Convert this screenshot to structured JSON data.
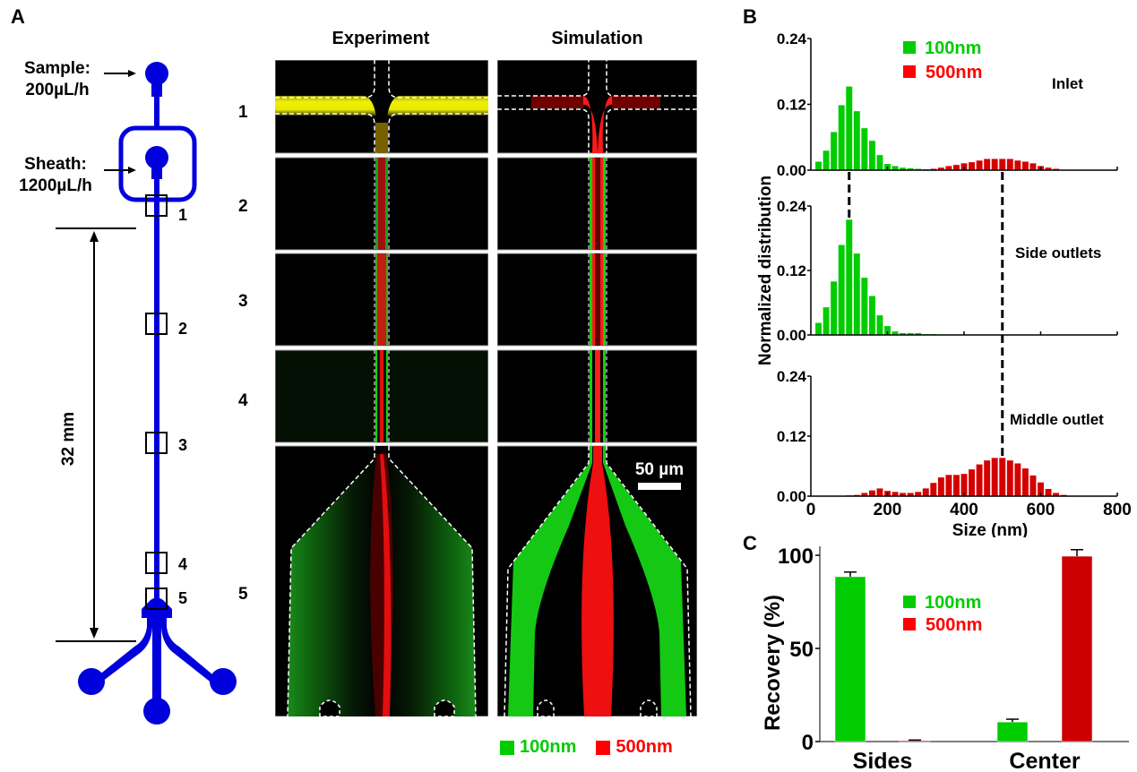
{
  "figure": {
    "panel_labels": {
      "a": "A",
      "b": "B",
      "c": "C"
    }
  },
  "panel_a": {
    "sample_label": "Sample:",
    "sample_rate": "200µL/h",
    "sheath_label": "Sheath:",
    "sheath_rate": "1200µL/h",
    "length_label": "32 mm",
    "window_labels": [
      "1",
      "2",
      "3",
      "4",
      "5"
    ],
    "column_titles": {
      "experiment": "Experiment",
      "simulation": "Simulation"
    },
    "row_labels": [
      "1",
      "2",
      "3",
      "4",
      "5"
    ],
    "scale_bar": "50 µm",
    "legend": [
      {
        "label": "100nm",
        "color": "#00cc00"
      },
      {
        "label": "500nm",
        "color": "#ff0000"
      }
    ],
    "device_color": "#0000dd"
  },
  "chart_data": [
    {
      "type": "bar",
      "title": "Inlet",
      "panel": "B",
      "xlabel": "Size (nm)",
      "ylabel": "Normalized distribution",
      "xlim": [
        0,
        800
      ],
      "ylim": [
        0,
        0.24
      ],
      "yticks": [
        "0.00",
        "0.12",
        "0.24"
      ],
      "xticks": [
        "0",
        "200",
        "400",
        "600",
        "800"
      ],
      "bin_width_nm": 20,
      "legend": [
        {
          "label": "100nm",
          "color": "#00cc00"
        },
        {
          "label": "500nm",
          "color": "#ff0000"
        }
      ],
      "legend_position": "top-center",
      "reference_lines_nm": [
        100,
        500
      ],
      "series": [
        {
          "name": "100nm",
          "color": "#00cc00",
          "x": [
            20,
            40,
            60,
            80,
            100,
            120,
            140,
            160,
            180,
            200,
            220,
            240,
            260,
            280,
            300
          ],
          "values": [
            0.016,
            0.036,
            0.07,
            0.119,
            0.153,
            0.108,
            0.077,
            0.054,
            0.028,
            0.012,
            0.008,
            0.005,
            0.004,
            0.003,
            0.002
          ]
        },
        {
          "name": "500nm",
          "color": "#d40000",
          "x": [
            300,
            320,
            340,
            360,
            380,
            400,
            420,
            440,
            460,
            480,
            500,
            520,
            540,
            560,
            580,
            600,
            620,
            640,
            660
          ],
          "values": [
            0.002,
            0.003,
            0.005,
            0.008,
            0.01,
            0.013,
            0.015,
            0.018,
            0.021,
            0.021,
            0.021,
            0.021,
            0.018,
            0.016,
            0.013,
            0.008,
            0.005,
            0.003,
            0.001
          ]
        }
      ]
    },
    {
      "type": "bar",
      "title": "Side outlets",
      "panel": "B",
      "xlim": [
        0,
        800
      ],
      "ylim": [
        0,
        0.24
      ],
      "yticks": [
        "0.00",
        "0.12",
        "0.24"
      ],
      "bin_width_nm": 20,
      "series": [
        {
          "name": "100nm",
          "color": "#00cc00",
          "x": [
            20,
            40,
            60,
            80,
            100,
            120,
            140,
            160,
            180,
            200,
            220,
            240,
            260,
            280,
            300,
            320,
            340,
            360
          ],
          "values": [
            0.023,
            0.052,
            0.1,
            0.168,
            0.215,
            0.152,
            0.107,
            0.073,
            0.037,
            0.017,
            0.007,
            0.004,
            0.004,
            0.004,
            0.002,
            0.002,
            0.001,
            0.001
          ]
        }
      ]
    },
    {
      "type": "bar",
      "title": "Middle outlet",
      "panel": "B",
      "xlabel": "Size (nm)",
      "xlim": [
        0,
        800
      ],
      "ylim": [
        0,
        0.24
      ],
      "yticks": [
        "0.00",
        "0.12",
        "0.24"
      ],
      "xticks": [
        "0",
        "200",
        "400",
        "600",
        "800"
      ],
      "bin_width_nm": 20,
      "series": [
        {
          "name": "500nm",
          "color": "#d40000",
          "x": [
            100,
            120,
            140,
            160,
            180,
            200,
            220,
            240,
            260,
            280,
            300,
            320,
            340,
            360,
            380,
            400,
            420,
            440,
            460,
            480,
            500,
            520,
            540,
            560,
            580,
            600,
            620,
            640,
            660,
            680,
            700
          ],
          "values": [
            0.002,
            0.003,
            0.007,
            0.012,
            0.016,
            0.011,
            0.009,
            0.007,
            0.007,
            0.009,
            0.016,
            0.027,
            0.038,
            0.043,
            0.043,
            0.045,
            0.054,
            0.064,
            0.072,
            0.077,
            0.077,
            0.072,
            0.066,
            0.056,
            0.042,
            0.028,
            0.015,
            0.007,
            0.003,
            0.001,
            0.001
          ]
        }
      ]
    },
    {
      "type": "bar",
      "panel": "C",
      "categories": [
        "Sides",
        "Center"
      ],
      "ylabel": "Recovery (%)",
      "ylim": [
        0,
        105
      ],
      "yticks": [
        "0",
        "50",
        "100"
      ],
      "legend": [
        {
          "label": "100nm",
          "color": "#00cc00"
        },
        {
          "label": "500nm",
          "color": "#cc0000"
        }
      ],
      "legend_position": "top-center",
      "series": [
        {
          "name": "100nm",
          "color": "#00cc00",
          "values": [
            88.5,
            10.5
          ],
          "errors": [
            2.5,
            1.5
          ]
        },
        {
          "name": "500nm",
          "color": "#cc0000",
          "values": [
            0.5,
            99.5
          ],
          "errors": [
            0.3,
            3.5
          ]
        }
      ]
    }
  ]
}
